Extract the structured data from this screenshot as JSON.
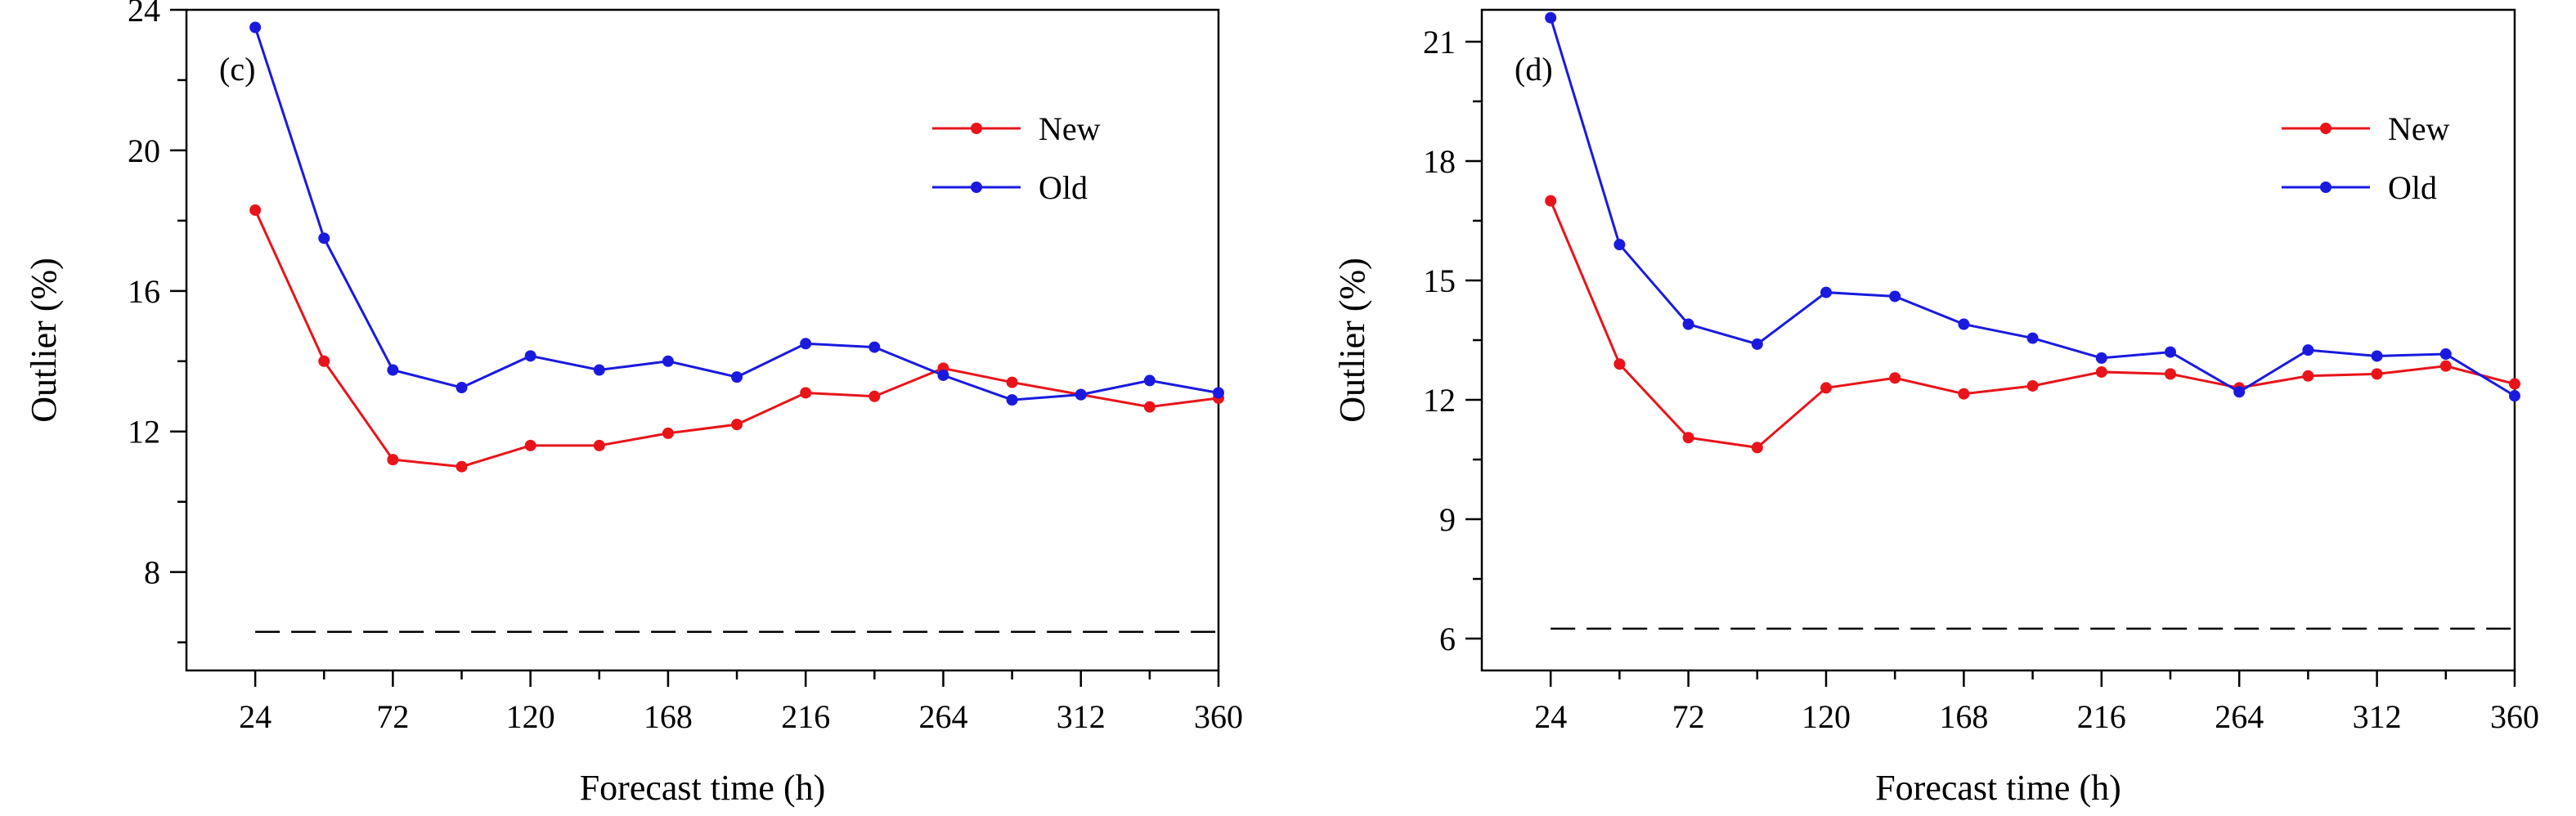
{
  "chart_data": [
    {
      "type": "line",
      "panel_label": "(c)",
      "xlabel": "Forecast time (h)",
      "ylabel": "Outlier (%)",
      "xlim": [
        0,
        360
      ],
      "ylim": [
        5.2,
        24.0
      ],
      "x_ticks": [
        24,
        72,
        120,
        168,
        216,
        264,
        312,
        360
      ],
      "x_tick_labels": [
        "24",
        "72",
        "120",
        "168",
        "216",
        "264",
        "312",
        "360"
      ],
      "y_ticks": [
        8,
        12,
        16,
        20,
        24
      ],
      "y_tick_labels": [
        "8",
        "12",
        "16",
        "20",
        "24"
      ],
      "y_minor_step": 2,
      "legend_position": "top-right",
      "x": [
        24,
        48,
        72,
        96,
        120,
        144,
        168,
        192,
        216,
        240,
        264,
        288,
        312,
        336,
        360
      ],
      "series": [
        {
          "name": "New",
          "color": "#e8141a",
          "values": [
            18.3,
            14.0,
            11.2,
            11.0,
            11.6,
            11.6,
            11.95,
            12.2,
            13.1,
            13.0,
            13.8,
            13.4,
            13.05,
            12.7,
            12.95
          ]
        },
        {
          "name": "Old",
          "color": "#1a1adf",
          "values": [
            23.5,
            17.5,
            13.75,
            13.25,
            14.15,
            13.75,
            14.0,
            13.55,
            14.5,
            14.4,
            13.6,
            12.9,
            13.05,
            13.45,
            13.1
          ]
        }
      ],
      "reference_line": {
        "style": "dashed",
        "y": 6.3
      }
    },
    {
      "type": "line",
      "panel_label": "(d)",
      "xlabel": "Forecast time (h)",
      "ylabel": "Outlier (%)",
      "xlim": [
        0,
        360
      ],
      "ylim": [
        5.2,
        21.8
      ],
      "x_ticks": [
        24,
        72,
        120,
        168,
        216,
        264,
        312,
        360
      ],
      "x_tick_labels": [
        "24",
        "72",
        "120",
        "168",
        "216",
        "264",
        "312",
        "360"
      ],
      "y_ticks": [
        6,
        9,
        12,
        15,
        18,
        21
      ],
      "y_tick_labels": [
        "6",
        "9",
        "12",
        "15",
        "18",
        "21"
      ],
      "y_minor_step": 1.5,
      "legend_position": "top-right",
      "x": [
        24,
        48,
        72,
        96,
        120,
        144,
        168,
        192,
        216,
        240,
        264,
        288,
        312,
        336,
        360
      ],
      "series": [
        {
          "name": "New",
          "color": "#e8141a",
          "values": [
            17.0,
            12.9,
            11.05,
            10.8,
            12.3,
            12.55,
            12.15,
            12.35,
            12.7,
            12.65,
            12.3,
            12.6,
            12.65,
            12.85,
            12.4
          ]
        },
        {
          "name": "Old",
          "color": "#1a1adf",
          "values": [
            21.6,
            15.9,
            13.9,
            13.4,
            14.7,
            14.6,
            13.9,
            13.55,
            13.05,
            13.2,
            12.2,
            13.25,
            13.1,
            13.15,
            12.1
          ]
        }
      ],
      "reference_line": {
        "style": "dashed",
        "y": 6.25
      }
    }
  ]
}
